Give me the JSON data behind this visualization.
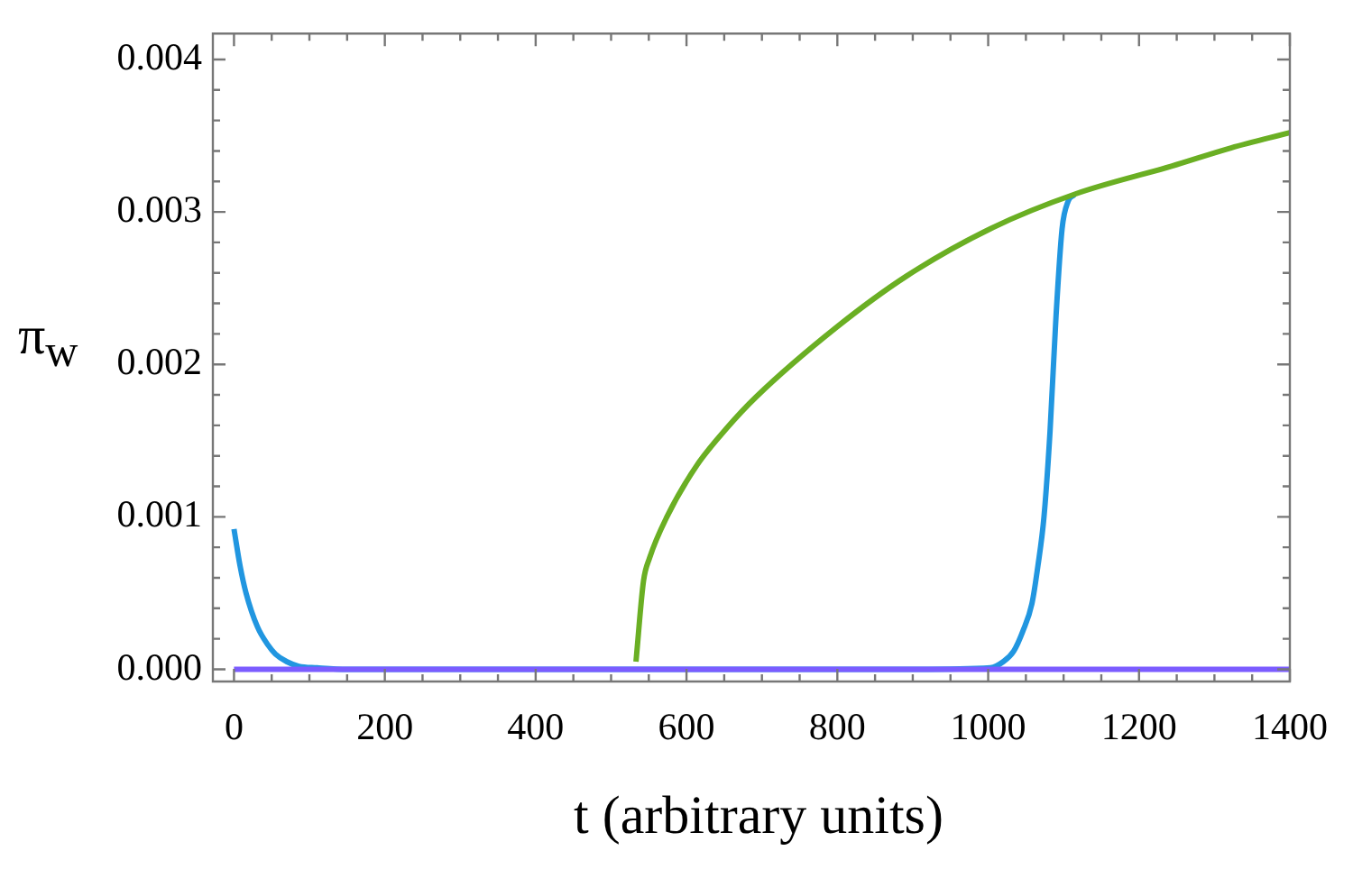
{
  "chart_data": {
    "type": "line",
    "xlabel": "t (arbitrary units)",
    "ylabel": "π$_{w}$",
    "xlim": [
      -28,
      1400
    ],
    "ylim": [
      -8e-05,
      0.00417
    ],
    "xticks": [
      0,
      {
        "value": 50,
        "label": null
      },
      {
        "value": 100,
        "label": null
      },
      {
        "value": 150,
        "label": null
      },
      200,
      {
        "value": 250,
        "label": null
      },
      {
        "value": 300,
        "label": null
      },
      {
        "value": 350,
        "label": null
      },
      400,
      {
        "value": 450,
        "label": null
      },
      {
        "value": 500,
        "label": null
      },
      {
        "value": 550,
        "label": null
      },
      600,
      {
        "value": 650,
        "label": null
      },
      {
        "value": 700,
        "label": null
      },
      {
        "value": 750,
        "label": null
      },
      800,
      {
        "value": 850,
        "label": null
      },
      {
        "value": 900,
        "label": null
      },
      {
        "value": 950,
        "label": null
      },
      1000,
      {
        "value": 1050,
        "label": null
      },
      {
        "value": 1100,
        "label": null
      },
      {
        "value": 1150,
        "label": null
      },
      1200,
      {
        "value": 1250,
        "label": null
      },
      {
        "value": 1300,
        "label": null
      },
      {
        "value": 1350,
        "label": null
      },
      1400
    ],
    "yticks": [
      {
        "value": 0,
        "label": "0.000"
      },
      {
        "value": 0.0002,
        "label": null
      },
      {
        "value": 0.0004,
        "label": null
      },
      {
        "value": 0.0006,
        "label": null
      },
      {
        "value": 0.0008,
        "label": null
      },
      {
        "value": 0.001,
        "label": "0.001"
      },
      {
        "value": 0.0012,
        "label": null
      },
      {
        "value": 0.0014,
        "label": null
      },
      {
        "value": 0.0016,
        "label": null
      },
      {
        "value": 0.0018,
        "label": null
      },
      {
        "value": 0.002,
        "label": "0.002"
      },
      {
        "value": 0.0022,
        "label": null
      },
      {
        "value": 0.0024,
        "label": null
      },
      {
        "value": 0.0026,
        "label": null
      },
      {
        "value": 0.0028,
        "label": null
      },
      {
        "value": 0.003,
        "label": "0.003"
      },
      {
        "value": 0.0032,
        "label": null
      },
      {
        "value": 0.0034,
        "label": null
      },
      {
        "value": 0.0036,
        "label": null
      },
      {
        "value": 0.0038,
        "label": null
      },
      {
        "value": 0.004,
        "label": "0.004"
      }
    ],
    "grid": false,
    "legend": false,
    "marker": "none",
    "line_style": "solid",
    "series": [
      {
        "color": "#2196e0",
        "x": [
          0,
          8,
          16,
          31,
          45,
          55,
          70,
          86,
          110,
          150,
          300,
          500,
          700,
          900,
          1003,
          1020,
          1034,
          1046,
          1058,
          1066,
          1074,
          1082,
          1090,
          1098,
          1106,
          1114
        ],
        "values": [
          0.00092,
          0.00068,
          0.0005,
          0.00028,
          0.00016,
          0.0001,
          5e-05,
          2e-05,
          1e-05,
          0,
          0,
          0,
          0,
          0,
          1e-05,
          5e-05,
          0.00012,
          0.00025,
          0.00043,
          0.00068,
          0.001,
          0.00156,
          0.00232,
          0.00289,
          0.00307,
          0.00311
        ]
      },
      {
        "color": "#6aaf23",
        "x": [
          533,
          543,
          551,
          574,
          614,
          653,
          693,
          798,
          892,
          1003,
          1117,
          1243,
          1322,
          1400
        ],
        "values": [
          5e-05,
          0.00058,
          0.00073,
          0.001,
          0.00134,
          0.00158,
          0.00179,
          0.00224,
          0.00258,
          0.00289,
          0.00312,
          0.0033,
          0.00342,
          0.00352
        ]
      },
      {
        "color": "#7b5cff",
        "x": [
          0,
          1400
        ],
        "values": [
          0,
          0
        ]
      }
    ]
  }
}
